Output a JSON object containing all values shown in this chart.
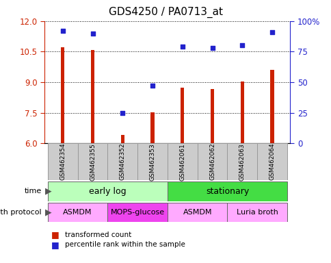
{
  "title": "GDS4250 / PA0713_at",
  "samples": [
    "GSM462354",
    "GSM462355",
    "GSM462352",
    "GSM462353",
    "GSM462061",
    "GSM462062",
    "GSM462063",
    "GSM462064"
  ],
  "transformed_count": [
    10.72,
    10.58,
    6.42,
    7.52,
    8.72,
    8.65,
    9.02,
    9.62
  ],
  "percentile_rank": [
    92,
    90,
    25,
    47,
    79,
    78,
    80,
    91
  ],
  "ylim_left": [
    6,
    12
  ],
  "ylim_right": [
    0,
    100
  ],
  "yticks_left": [
    6,
    7.5,
    9,
    10.5,
    12
  ],
  "yticks_right": [
    0,
    25,
    50,
    75,
    100
  ],
  "bar_color": "#cc2200",
  "dot_color": "#2222cc",
  "bar_width": 0.12,
  "time_groups": [
    {
      "label": "early log",
      "start": 0,
      "end": 4,
      "color": "#bbffbb"
    },
    {
      "label": "stationary",
      "start": 4,
      "end": 8,
      "color": "#44dd44"
    }
  ],
  "protocol_groups": [
    {
      "label": "ASMDM",
      "start": 0,
      "end": 2,
      "color": "#ffaaff"
    },
    {
      "label": "MOPS-glucose",
      "start": 2,
      "end": 4,
      "color": "#ee44ee"
    },
    {
      "label": "ASMDM",
      "start": 4,
      "end": 6,
      "color": "#ffaaff"
    },
    {
      "label": "Luria broth",
      "start": 6,
      "end": 8,
      "color": "#ffaaff"
    }
  ],
  "legend_red_label": "transformed count",
  "legend_blue_label": "percentile rank within the sample",
  "sample_box_color": "#cccccc",
  "sample_box_edge": "#999999",
  "left_label_color": "#555555"
}
